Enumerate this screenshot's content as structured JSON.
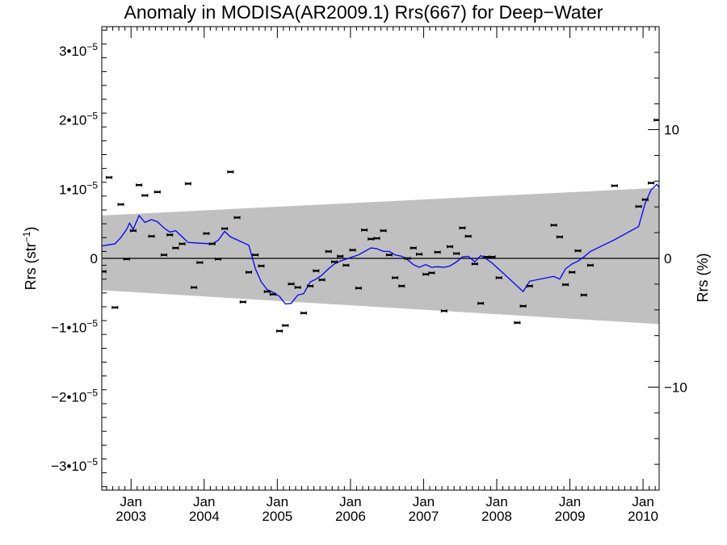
{
  "chart_data": {
    "type": "scatter",
    "title": "Anomaly in MODISA(AR2009.1) Rrs(667) for Deep−Water",
    "ylabel_left": {
      "text": "Rrs (str",
      "sup": "−1",
      "suffix": ")"
    },
    "ylabel_right": "Rrs (%)",
    "xlim": [
      2002.6,
      2010.22
    ],
    "ylim": [
      -3.35e-05,
      3.35e-05
    ],
    "y2lim": [
      -18.0,
      18.0
    ],
    "x_ticks": [
      {
        "x": 2003.0,
        "top": "Jan",
        "bottom": "2003"
      },
      {
        "x": 2004.0,
        "top": "Jan",
        "bottom": "2004"
      },
      {
        "x": 2005.0,
        "top": "Jan",
        "bottom": "2005"
      },
      {
        "x": 2006.0,
        "top": "Jan",
        "bottom": "2006"
      },
      {
        "x": 2007.0,
        "top": "Jan",
        "bottom": "2007"
      },
      {
        "x": 2008.0,
        "top": "Jan",
        "bottom": "2008"
      },
      {
        "x": 2009.0,
        "top": "Jan",
        "bottom": "2009"
      },
      {
        "x": 2010.0,
        "top": "Jan",
        "bottom": "2010"
      }
    ],
    "y_ticks_left": [
      {
        "value": 3e-05,
        "base": "3•10",
        "exp": "−5"
      },
      {
        "value": 2e-05,
        "base": "2•10",
        "exp": "−5"
      },
      {
        "value": 1e-05,
        "base": "1•10",
        "exp": "−5"
      },
      {
        "value": 0,
        "base": "0",
        "exp": ""
      },
      {
        "value": -1e-05,
        "base": "−1•10",
        "exp": "−5"
      },
      {
        "value": -2e-05,
        "base": "−2•10",
        "exp": "−5"
      },
      {
        "value": -3e-05,
        "base": "−3•10",
        "exp": "−5"
      }
    ],
    "y_ticks_right": [
      {
        "value": 10,
        "label": "10"
      },
      {
        "value": 0,
        "label": "0"
      },
      {
        "value": -10,
        "label": "−10"
      }
    ],
    "band": {
      "color": "#c0c0c0",
      "x": [
        2002.6,
        2010.22
      ],
      "upper": [
        6.2e-06,
        1.02e-05
      ],
      "lower": [
        -4.6e-06,
        -9.5e-06
      ]
    },
    "zero_line": true,
    "series": [
      {
        "kind": "points",
        "color": "#000000",
        "x": [
          2002.62,
          2002.7,
          2002.78,
          2002.86,
          2002.94,
          2003.03,
          2003.11,
          2003.19,
          2003.28,
          2003.36,
          2003.45,
          2003.53,
          2003.61,
          2003.7,
          2003.78,
          2003.86,
          2003.94,
          2004.03,
          2004.11,
          2004.19,
          2004.28,
          2004.36,
          2004.45,
          2004.53,
          2004.61,
          2004.7,
          2004.78,
          2004.86,
          2004.94,
          2005.03,
          2005.11,
          2005.19,
          2005.28,
          2005.36,
          2005.45,
          2005.53,
          2005.61,
          2005.7,
          2005.78,
          2005.86,
          2005.94,
          2006.03,
          2006.11,
          2006.19,
          2006.28,
          2006.36,
          2006.45,
          2006.53,
          2006.61,
          2006.7,
          2006.78,
          2006.86,
          2006.94,
          2007.03,
          2007.11,
          2007.19,
          2007.28,
          2007.36,
          2007.45,
          2007.53,
          2007.61,
          2007.7,
          2007.78,
          2007.86,
          2007.94,
          2008.03,
          2008.28,
          2008.36,
          2008.45,
          2008.78,
          2008.86,
          2008.94,
          2009.03,
          2009.11,
          2009.19,
          2009.28,
          2009.61,
          2009.94,
          2010.03,
          2010.11,
          2010.19
        ],
        "y": [
          -1.9e-06,
          1.17e-05,
          -7.1e-06,
          7.8e-06,
          -1e-07,
          4e-06,
          1.06e-05,
          9.1e-06,
          3.2e-06,
          9.6e-06,
          5e-07,
          3.4e-06,
          1.5e-06,
          2.1e-06,
          1.08e-05,
          -4.2e-06,
          -6e-07,
          3.6e-06,
          2.1e-06,
          -1e-07,
          4.3e-06,
          1.25e-05,
          5.9e-06,
          -6.3e-06,
          -2e-06,
          5e-07,
          -1.1e-06,
          -4.8e-06,
          -5.2e-06,
          -1.05e-05,
          -9.7e-06,
          -3.7e-06,
          -4.2e-06,
          -7.9e-06,
          -4e-06,
          -1.8e-06,
          -3.1e-06,
          1e-06,
          -5e-07,
          3e-07,
          -1e-06,
          1.2e-06,
          -4.3e-06,
          4.1e-06,
          2.8e-06,
          2.9e-06,
          4e-06,
          5e-07,
          -2.8e-06,
          -4e-06,
          0,
          1.5e-06,
          6e-07,
          -2.3e-06,
          -2.1e-06,
          9e-07,
          -7.6e-06,
          1.7e-06,
          7e-07,
          4.4e-06,
          3.2e-06,
          -8e-07,
          -6.5e-06,
          2e-07,
          2e-07,
          -2.8e-06,
          -9.3e-06,
          -6.9e-06,
          -4e-06,
          4.8e-06,
          3.1e-06,
          -3.8e-06,
          -2e-06,
          1.1e-06,
          -5.3e-06,
          -1e-06,
          1.05e-05,
          7.5e-06,
          8.5e-06,
          1.09e-05,
          2e-05
        ]
      },
      {
        "kind": "line",
        "color": "#0000ff",
        "x": [
          2002.6,
          2002.78,
          2002.86,
          2002.94,
          2002.98,
          2003.03,
          2003.11,
          2003.19,
          2003.28,
          2003.36,
          2003.45,
          2003.53,
          2003.61,
          2003.7,
          2003.78,
          2003.94,
          2004.11,
          2004.19,
          2004.28,
          2004.36,
          2004.61,
          2004.7,
          2004.78,
          2004.86,
          2004.94,
          2005.03,
          2005.11,
          2005.19,
          2005.28,
          2005.36,
          2005.45,
          2005.53,
          2005.61,
          2005.7,
          2005.78,
          2005.86,
          2005.94,
          2006.11,
          2006.28,
          2006.36,
          2006.45,
          2006.53,
          2006.61,
          2006.7,
          2006.78,
          2006.86,
          2006.94,
          2007.03,
          2007.11,
          2007.19,
          2007.28,
          2007.36,
          2007.45,
          2007.53,
          2007.61,
          2007.7,
          2007.78,
          2007.86,
          2007.94,
          2008.36,
          2008.45,
          2008.78,
          2008.86,
          2008.94,
          2009.03,
          2009.11,
          2009.19,
          2009.28,
          2009.61,
          2009.94,
          2010.03,
          2010.11,
          2010.19,
          2010.22
        ],
        "y": [
          1.8e-06,
          2.1e-06,
          3e-06,
          4.2e-06,
          5.1e-06,
          4.2e-06,
          6.2e-06,
          5.2e-06,
          5.6e-06,
          5.3e-06,
          4.4e-06,
          3.8e-06,
          4e-06,
          3.1e-06,
          2.3e-06,
          2.2e-06,
          2.1e-06,
          2.6e-06,
          3.9e-06,
          3.1e-06,
          1.9e-06,
          -1.5e-06,
          -3.4e-06,
          -4.5e-06,
          -4.9e-06,
          -5.5e-06,
          -6.6e-06,
          -6.5e-06,
          -5.3e-06,
          -5.1e-06,
          -3.4e-06,
          -3e-06,
          -2.4e-06,
          -1.5e-06,
          -8e-07,
          -4e-07,
          -1e-07,
          5e-07,
          1.5e-06,
          1.4e-06,
          1e-06,
          1e-06,
          5e-07,
          3e-07,
          -2e-07,
          -9e-07,
          -1.3e-06,
          -9e-07,
          -1.3e-06,
          -1.2e-06,
          -1.3e-06,
          -1.1e-06,
          -5e-07,
          2e-07,
          3e-07,
          -5e-07,
          4e-07,
          -1e-07,
          -7e-07,
          -4.8e-06,
          -3.3e-06,
          -2.6e-06,
          -3e-06,
          -1.5e-06,
          -8e-07,
          -4e-07,
          2e-07,
          1e-06,
          2.7e-06,
          4.6e-06,
          8e-06,
          9.9e-06,
          1.07e-05,
          1.02e-05
        ]
      }
    ]
  }
}
